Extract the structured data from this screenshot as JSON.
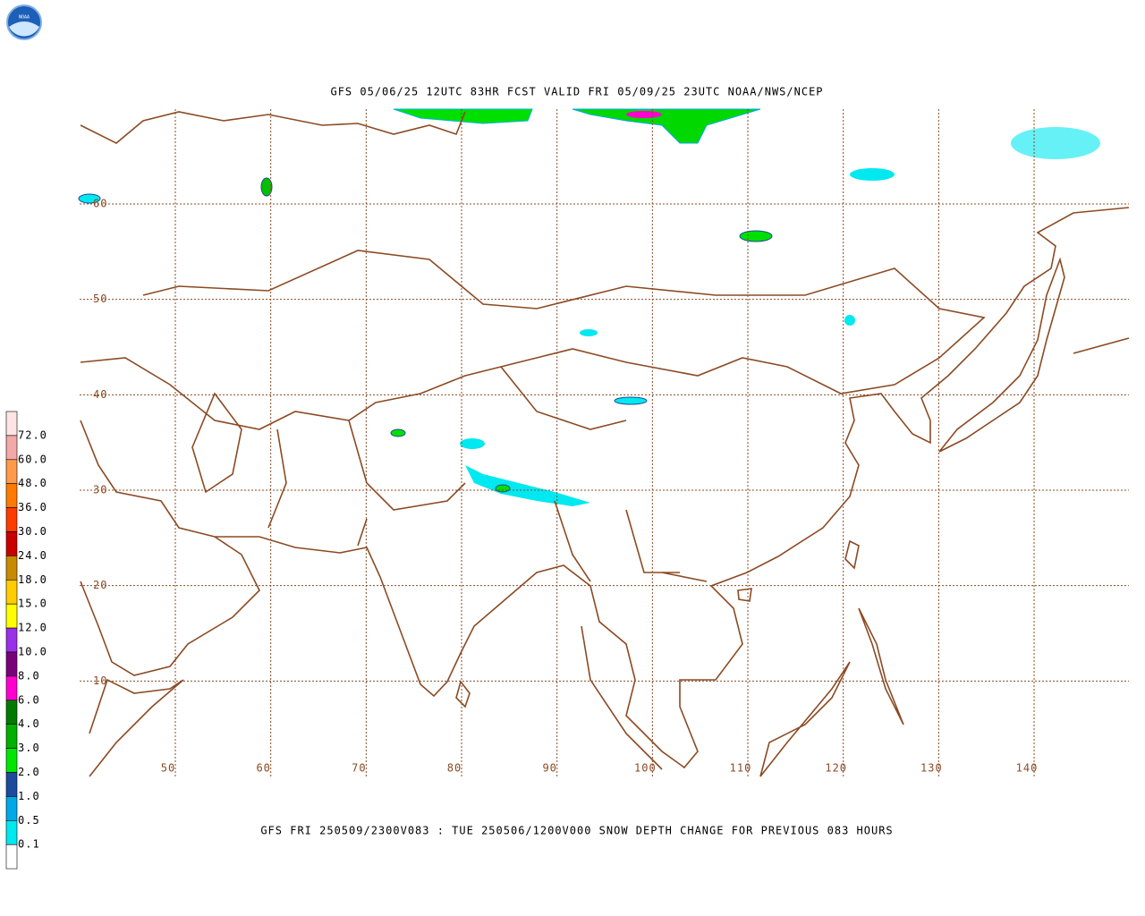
{
  "logo": {
    "label": "NOAA"
  },
  "header": {
    "title": "GFS 05/06/25 12UTC 83HR FCST VALID FRI 05/09/25 23UTC NOAA/NWS/NCEP"
  },
  "map": {
    "lat_labels": [
      "60",
      "50",
      "40",
      "30",
      "20",
      "10"
    ],
    "lon_labels": [
      "50",
      "60",
      "70",
      "80",
      "90",
      "100",
      "110",
      "120",
      "130",
      "140"
    ]
  },
  "legend": {
    "labels": [
      "72.0",
      "60.0",
      "48.0",
      "36.0",
      "30.0",
      "24.0",
      "18.0",
      "15.0",
      "12.0",
      "10.0",
      "8.0",
      "6.0",
      "4.0",
      "3.0",
      "2.0",
      "1.0",
      "0.5",
      "0.1"
    ],
    "colors": [
      "#ffe4e4",
      "#f4a8a8",
      "#ff9a4a",
      "#ff7a00",
      "#ff3c00",
      "#c80000",
      "#c88a00",
      "#ffcc00",
      "#ffff00",
      "#9a30e8",
      "#7a007a",
      "#ff00d0",
      "#007a00",
      "#00b000",
      "#00e600",
      "#1c4a9c",
      "#00a8e8",
      "#00e8f0",
      "#ffffff"
    ]
  },
  "footer": {
    "caption": "GFS FRI 250509/2300V083 : TUE 250506/1200V000 SNOW DEPTH CHANGE FOR PREVIOUS 083 HOURS"
  }
}
